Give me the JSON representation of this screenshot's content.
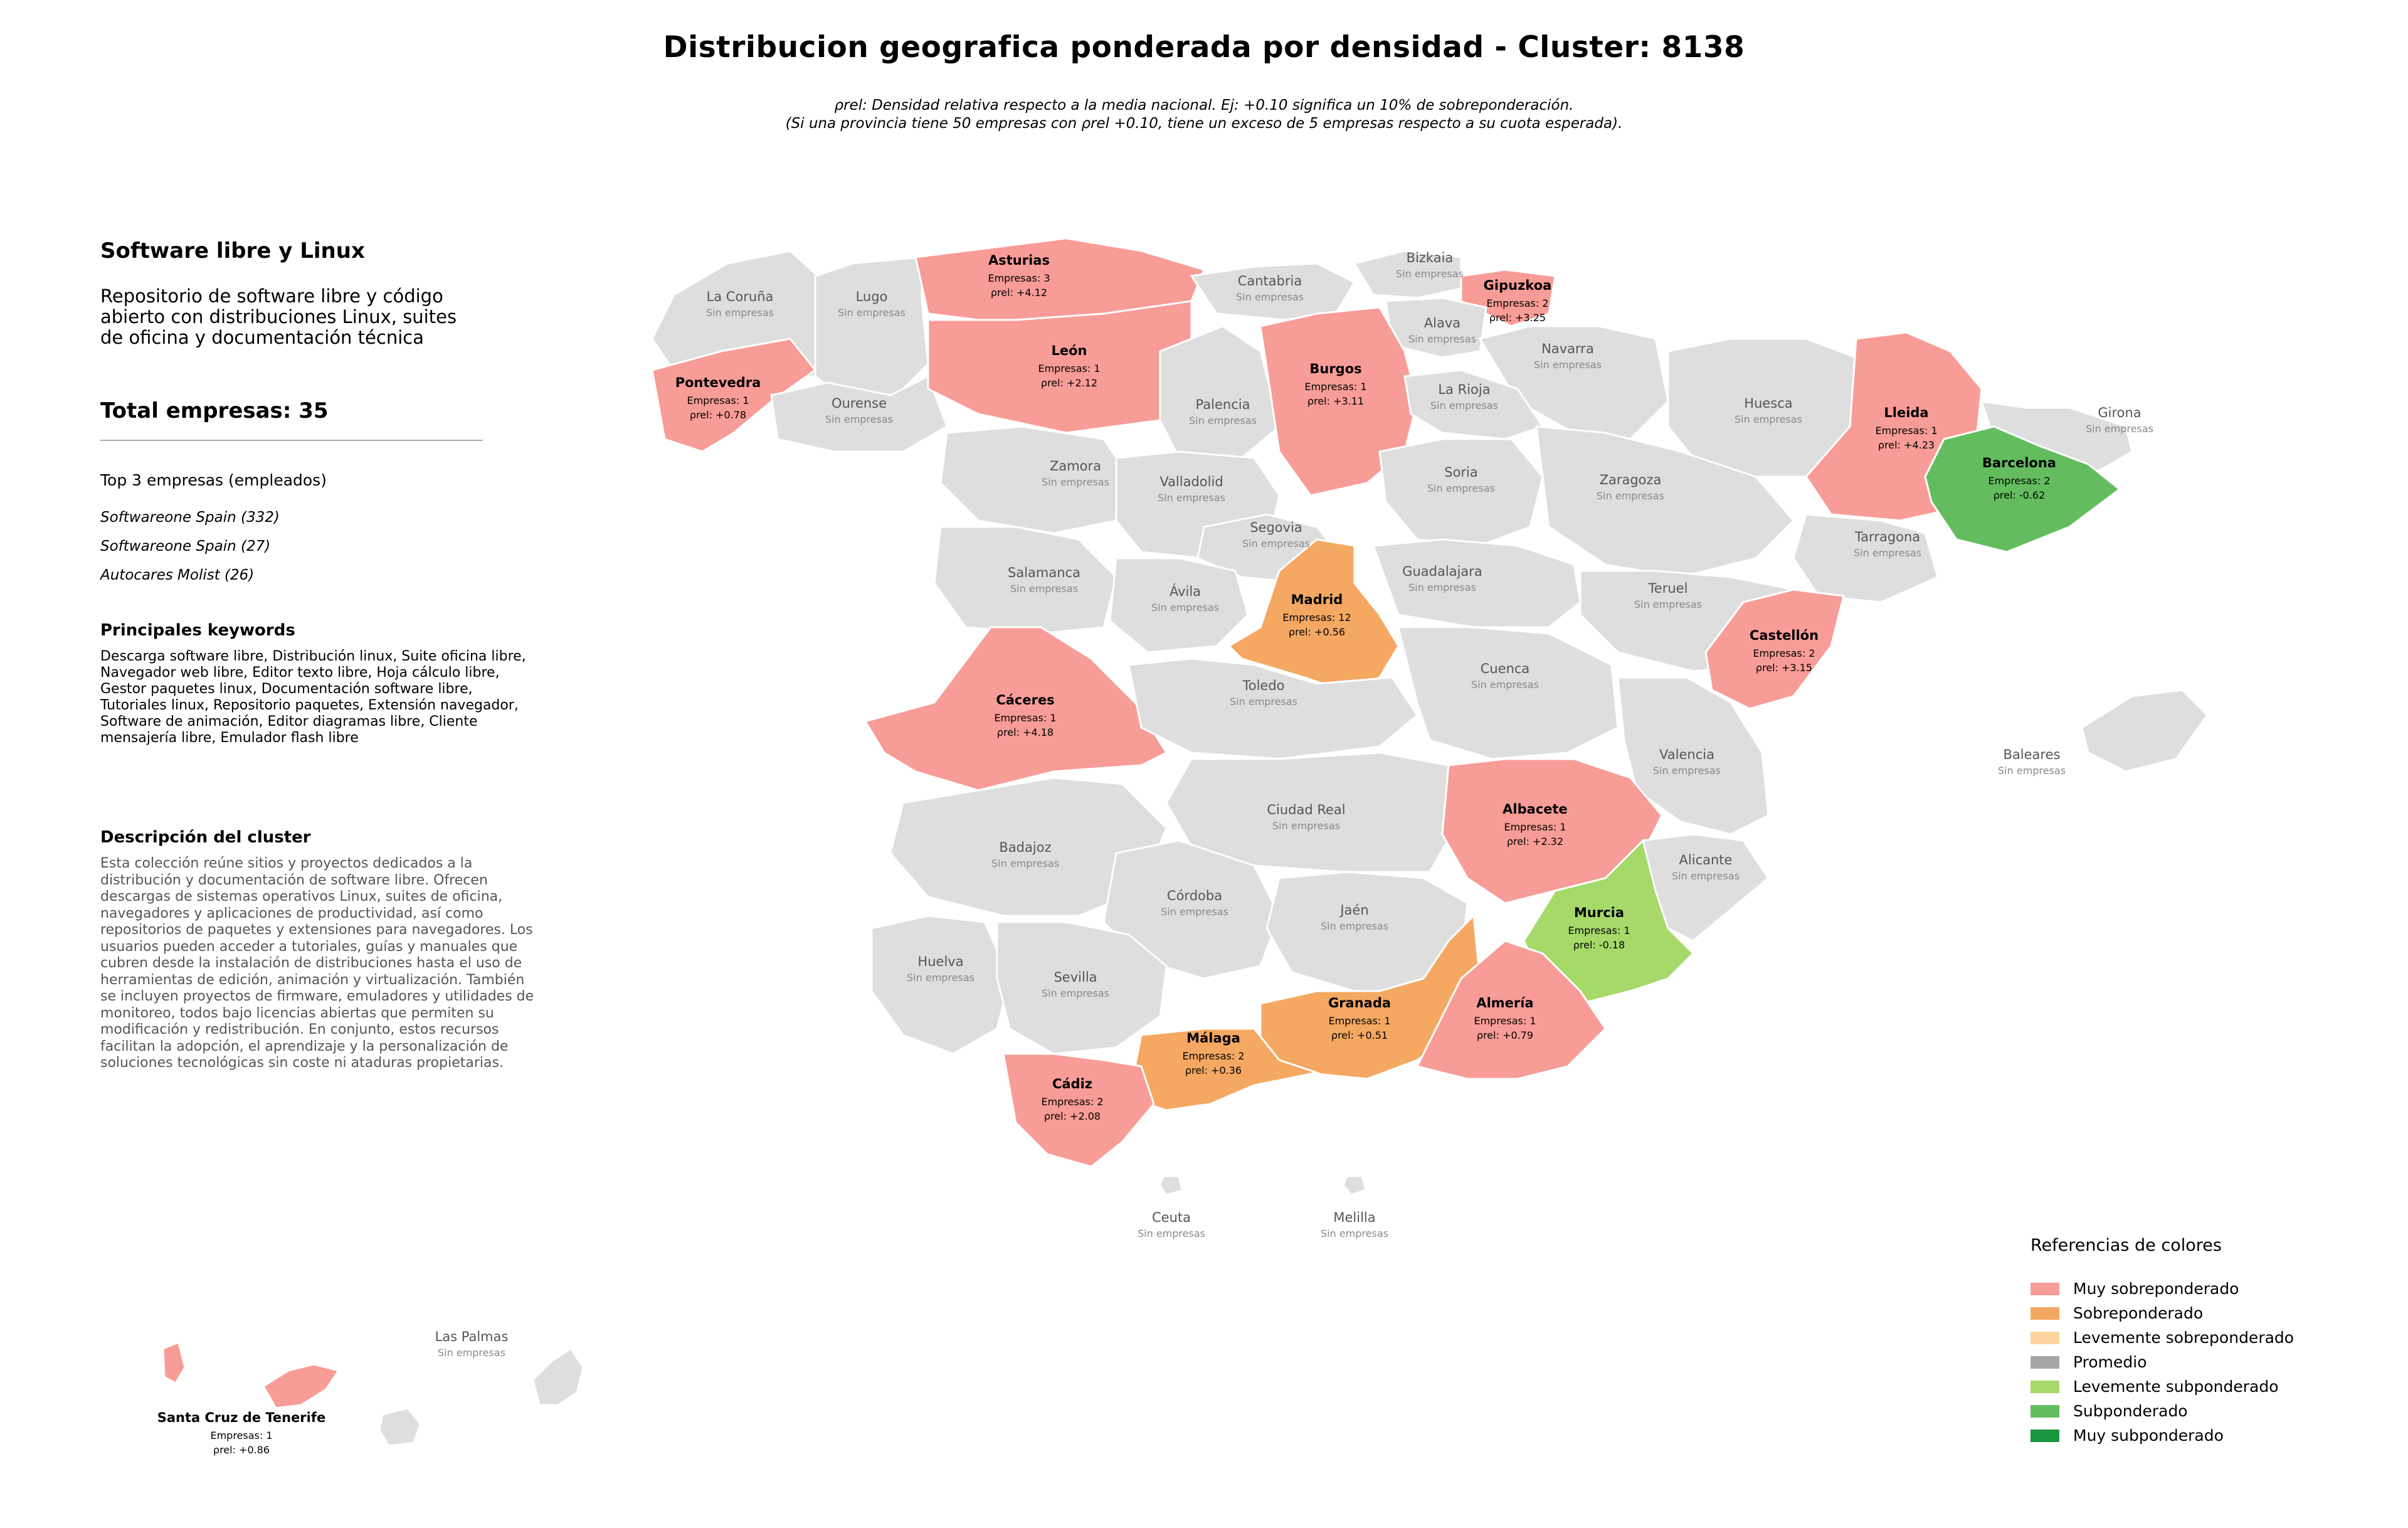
{
  "title": "Distribucion geografica ponderada por densidad - Cluster: 8138",
  "subtitle_line1": "ρrel: Densidad relativa respecto a la media nacional. Ej: +0.10 significa un 10% de sobreponderación.",
  "subtitle_line2": "(Si una provincia tiene 50 empresas con ρrel +0.10, tiene un exceso de 5 empresas respecto a su cuota esperada).",
  "panel": {
    "cluster_name": "Software libre y Linux",
    "cluster_summary": "Repositorio de software libre y código abierto con distribuciones Linux, suites de oficina y documentación técnica",
    "total_label": "Total empresas: 35",
    "top_title": "Top 3 empresas (empleados)",
    "top_companies": [
      "Softwareone Spain (332)",
      "Softwareone Spain (27)",
      "Autocares Molist (26)"
    ],
    "keywords_title": "Principales keywords",
    "keywords_text": "Descarga software libre, Distribución linux, Suite oficina libre, Navegador web libre, Editor texto libre, Hoja cálculo libre, Gestor paquetes linux, Documentación software libre, Tutoriales linux, Repositorio paquetes, Extensión navegador, Software de animación, Editor diagramas libre, Cliente mensajería libre, Emulador flash libre",
    "description_title": "Descripción del cluster",
    "description_text": "Esta colección reúne sitios y proyectos dedicados a la distribución y documentación de software libre. Ofrecen descargas de sistemas operativos Linux, suites de oficina, navegadores y aplicaciones de productividad, así como repositorios de paquetes y extensiones para navegadores. Los usuarios pueden acceder a tutoriales, guías y manuales que cubren desde la instalación de distribuciones hasta el uso de herramientas de edición, animación y virtualización. También se incluyen proyectos de firmware, emuladores y utilidades de monitoreo, todos bajo licencias abiertas que permiten su modificación y redistribución. En conjunto, estos recursos facilitan la adopción, el aprendizaje y la personalización de soluciones tecnológicas sin coste ni ataduras propietarias."
  },
  "colors": {
    "muy_sobre": "#f89c97",
    "sobre": "#f5a862",
    "lev_sobre": "#fdd49e",
    "promedio": "#a6a6a6",
    "lev_sub": "#a6d96a",
    "sub": "#63bd5f",
    "muy_sub": "#1a9641",
    "none": "#dedede"
  },
  "legend": {
    "title": "Referencias de colores",
    "items": [
      {
        "label": "Muy sobreponderado",
        "color": "#f89c97"
      },
      {
        "label": "Sobreponderado",
        "color": "#f5a862"
      },
      {
        "label": "Levemente sobreponderado",
        "color": "#fdd49e"
      },
      {
        "label": "Promedio",
        "color": "#a6a6a6"
      },
      {
        "label": "Levemente subponderado",
        "color": "#a6d96a"
      },
      {
        "label": "Subponderado",
        "color": "#63bd5f"
      },
      {
        "label": "Muy subponderado",
        "color": "#1a9641"
      }
    ]
  },
  "labels": {
    "empresas_prefix": "Empresas: ",
    "rho_prefix": "ρrel: ",
    "none": "Sin empresas"
  },
  "provinces": [
    {
      "name": "La Coruña"
    },
    {
      "name": "Lugo"
    },
    {
      "name": "Asturias",
      "empresas": 3,
      "rho": "+4.12",
      "cat": "muy_sobre"
    },
    {
      "name": "Cantabria"
    },
    {
      "name": "Bizkaia"
    },
    {
      "name": "Gipuzkoa",
      "empresas": 2,
      "rho": "+3.25",
      "cat": "muy_sobre"
    },
    {
      "name": "Alava"
    },
    {
      "name": "Navarra"
    },
    {
      "name": "Pontevedra",
      "empresas": 1,
      "rho": "+0.78",
      "cat": "muy_sobre"
    },
    {
      "name": "Ourense"
    },
    {
      "name": "León",
      "empresas": 1,
      "rho": "+2.12",
      "cat": "muy_sobre"
    },
    {
      "name": "Palencia"
    },
    {
      "name": "Burgos",
      "empresas": 1,
      "rho": "+3.11",
      "cat": "muy_sobre"
    },
    {
      "name": "La Rioja"
    },
    {
      "name": "Huesca"
    },
    {
      "name": "Lleida",
      "empresas": 1,
      "rho": "+4.23",
      "cat": "muy_sobre"
    },
    {
      "name": "Girona"
    },
    {
      "name": "Barcelona",
      "empresas": 2,
      "rho": "-0.62",
      "cat": "sub"
    },
    {
      "name": "Zamora"
    },
    {
      "name": "Valladolid"
    },
    {
      "name": "Soria"
    },
    {
      "name": "Zaragoza"
    },
    {
      "name": "Segovia"
    },
    {
      "name": "Tarragona"
    },
    {
      "name": "Salamanca"
    },
    {
      "name": "Ávila"
    },
    {
      "name": "Madrid",
      "empresas": 12,
      "rho": "+0.56",
      "cat": "sobre"
    },
    {
      "name": "Guadalajara"
    },
    {
      "name": "Teruel"
    },
    {
      "name": "Castellón",
      "empresas": 2,
      "rho": "+3.15",
      "cat": "muy_sobre"
    },
    {
      "name": "Cáceres",
      "empresas": 1,
      "rho": "+4.18",
      "cat": "muy_sobre"
    },
    {
      "name": "Toledo"
    },
    {
      "name": "Cuenca"
    },
    {
      "name": "Valencia"
    },
    {
      "name": "Baleares"
    },
    {
      "name": "Ciudad Real"
    },
    {
      "name": "Albacete",
      "empresas": 1,
      "rho": "+2.32",
      "cat": "muy_sobre"
    },
    {
      "name": "Badajoz"
    },
    {
      "name": "Alicante"
    },
    {
      "name": "Córdoba"
    },
    {
      "name": "Jaén"
    },
    {
      "name": "Murcia",
      "empresas": 1,
      "rho": "-0.18",
      "cat": "lev_sub"
    },
    {
      "name": "Huelva"
    },
    {
      "name": "Sevilla"
    },
    {
      "name": "Granada",
      "empresas": 1,
      "rho": "+0.51",
      "cat": "sobre"
    },
    {
      "name": "Almería",
      "empresas": 1,
      "rho": "+0.79",
      "cat": "muy_sobre"
    },
    {
      "name": "Málaga",
      "empresas": 2,
      "rho": "+0.36",
      "cat": "sobre"
    },
    {
      "name": "Cádiz",
      "empresas": 2,
      "rho": "+2.08",
      "cat": "muy_sobre"
    },
    {
      "name": "Ceuta"
    },
    {
      "name": "Melilla"
    },
    {
      "name": "Las Palmas"
    },
    {
      "name": "Santa Cruz de Tenerife",
      "empresas": 1,
      "rho": "+0.86",
      "cat": "muy_sobre"
    }
  ]
}
